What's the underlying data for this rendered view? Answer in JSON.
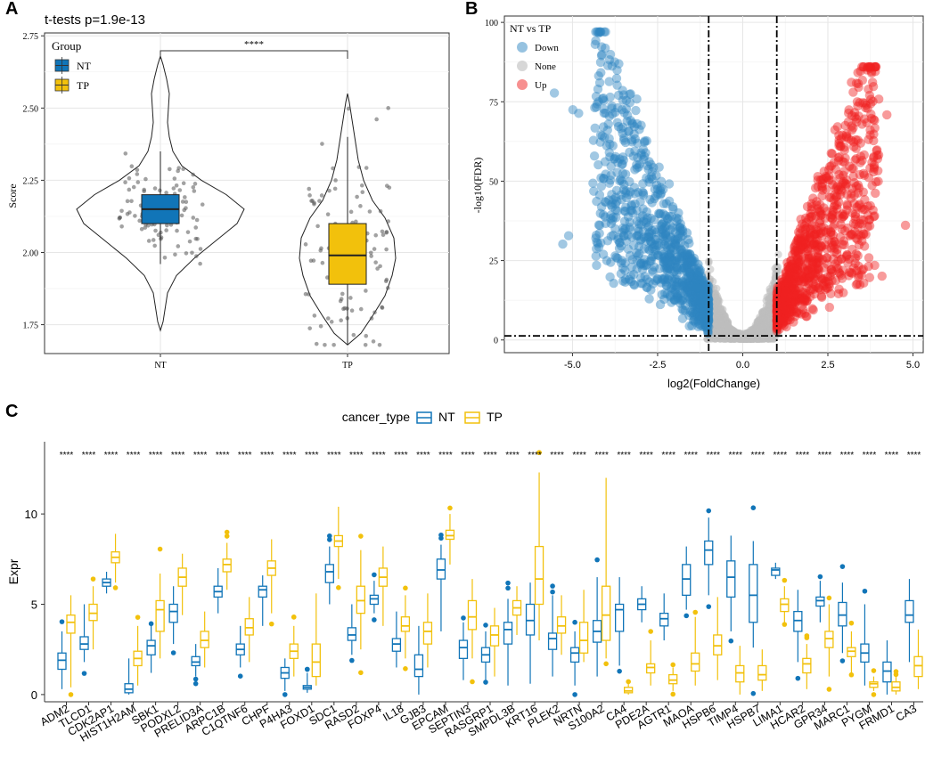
{
  "colors": {
    "nt": "#1175B8",
    "tp": "#F2C10C",
    "down": "#2E86C1",
    "none": "#BDBDBD",
    "up": "#F02222",
    "grid": "#E6E6E6",
    "axis": "#333333"
  },
  "chart_data": [
    {
      "panel_label": "A",
      "type": "violin-box",
      "title": "t-tests p=1.9e-13",
      "xlabel": "",
      "ylabel": "Score",
      "ylim": [
        1.65,
        2.76
      ],
      "yticks": [
        1.75,
        2.0,
        2.25,
        2.5,
        2.75
      ],
      "ytick_labels": [
        "1.75",
        "2.00",
        "2.25",
        "2.50",
        "2.75"
      ],
      "categories": [
        "NT",
        "TP"
      ],
      "legend_title": "Group",
      "legend": [
        "NT",
        "TP"
      ],
      "significance": "****",
      "groups": [
        {
          "name": "NT",
          "q1": 2.1,
          "median": 2.15,
          "q3": 2.2,
          "whisker_low": 1.96,
          "whisker_high": 2.35,
          "min": 1.73,
          "max": 2.68
        },
        {
          "name": "TP",
          "q1": 1.89,
          "median": 1.99,
          "q3": 2.1,
          "whisker_low": 1.68,
          "whisker_high": 2.4,
          "min": 1.68,
          "max": 2.55
        }
      ]
    },
    {
      "panel_label": "B",
      "type": "scatter",
      "title": "",
      "xlabel": "log2(FoldChange)",
      "ylabel": "-log10(FDR)",
      "xlim": [
        -7.0,
        5.3
      ],
      "ylim": [
        -4,
        102
      ],
      "xticks": [
        -5.0,
        -2.5,
        0.0,
        2.5,
        5.0
      ],
      "xtick_labels": [
        "-5.0",
        "-2.5",
        "0.0",
        "2.5",
        "5.0"
      ],
      "yticks": [
        0,
        25,
        50,
        75,
        100
      ],
      "ytick_labels": [
        "0",
        "25",
        "50",
        "75",
        "100"
      ],
      "legend_title": "NT vs TP",
      "legend": [
        "Down",
        "None",
        "Up"
      ],
      "thresholds": {
        "fc_low": -1,
        "fc_high": 1,
        "fdr": 1.3
      },
      "note": "Volcano plot; thousands of points shown as a dense cloud."
    },
    {
      "panel_label": "C",
      "type": "boxplot",
      "title": "",
      "xlabel": "",
      "ylabel": "Expr",
      "ylim": [
        -0.4,
        14.0
      ],
      "yticks": [
        0,
        5,
        10
      ],
      "ytick_labels": [
        "0",
        "5",
        "10"
      ],
      "legend_title": "cancer_type",
      "legend": [
        "NT",
        "TP"
      ],
      "significance_label": "****",
      "categories": [
        "ADM2",
        "TLCD1",
        "CDK2AP1",
        "HIST1H2AM",
        "SBK1",
        "PODXL2",
        "PRELID3A",
        "ARPC1B",
        "C1QTNF6",
        "CHPF",
        "P4HA3",
        "FOXD1",
        "SDC1",
        "RASD2",
        "FOXP4",
        "IL18",
        "GJB3",
        "EPCAM",
        "SEPTIN3",
        "RASGRP1",
        "SMPDL3B",
        "KRT16",
        "PLEK2",
        "NRTN",
        "S100A2",
        "CA4",
        "PDE2A",
        "AGTR1",
        "MAOA",
        "HSPB6",
        "TIMP4",
        "HSPB7",
        "LIMA1",
        "HCAR2",
        "GPR34",
        "MARC1",
        "PYGM",
        "FRMD1",
        "CA3"
      ],
      "series": [
        {
          "name": "NT",
          "boxes": [
            [
              0.3,
              1.4,
              1.9,
              2.3,
              3.5
            ],
            [
              1.8,
              2.5,
              2.8,
              3.2,
              5.0
            ],
            [
              5.6,
              6.0,
              6.2,
              6.4,
              6.8
            ],
            [
              0.0,
              0.1,
              0.3,
              0.6,
              2.0
            ],
            [
              1.2,
              2.2,
              2.7,
              3.0,
              3.8
            ],
            [
              2.8,
              4.0,
              4.6,
              5.0,
              6.0
            ],
            [
              1.0,
              1.6,
              1.8,
              2.1,
              2.8
            ],
            [
              4.5,
              5.4,
              5.7,
              6.0,
              7.0
            ],
            [
              1.5,
              2.2,
              2.5,
              2.8,
              3.8
            ],
            [
              3.8,
              5.4,
              5.8,
              6.0,
              6.6
            ],
            [
              0.2,
              0.9,
              1.2,
              1.5,
              2.0
            ],
            [
              0.1,
              0.3,
              0.4,
              0.5,
              1.2
            ],
            [
              5.0,
              6.2,
              6.8,
              7.2,
              8.2
            ],
            [
              2.2,
              3.0,
              3.3,
              3.7,
              5.0
            ],
            [
              4.5,
              5.0,
              5.3,
              5.5,
              6.3
            ],
            [
              1.5,
              2.4,
              2.8,
              3.1,
              4.6
            ],
            [
              0.0,
              1.0,
              1.4,
              2.2,
              3.8
            ],
            [
              3.5,
              6.4,
              6.9,
              7.5,
              8.3
            ],
            [
              0.8,
              2.0,
              2.6,
              3.0,
              4.0
            ],
            [
              0.8,
              1.8,
              2.2,
              2.6,
              3.5
            ],
            [
              0.5,
              2.8,
              3.6,
              4.0,
              5.3
            ],
            [
              0.6,
              3.3,
              4.1,
              5.0,
              6.2
            ],
            [
              1.0,
              2.5,
              3.1,
              3.4,
              5.5
            ],
            [
              0.5,
              1.8,
              2.3,
              2.6,
              3.5
            ],
            [
              1.0,
              2.9,
              3.5,
              4.1,
              6.5
            ],
            [
              1.6,
              3.5,
              4.7,
              5.0,
              6.5
            ],
            [
              4.0,
              4.7,
              5.0,
              5.3,
              6.0
            ],
            [
              3.0,
              3.8,
              4.2,
              4.5,
              5.6
            ],
            [
              4.7,
              5.5,
              6.4,
              7.2,
              8.2
            ],
            [
              5.5,
              7.2,
              8.0,
              8.5,
              9.8
            ],
            [
              3.5,
              5.4,
              6.5,
              7.4,
              8.8
            ],
            [
              2.6,
              4.0,
              5.5,
              7.2,
              8.5
            ],
            [
              6.4,
              6.6,
              6.9,
              7.0,
              7.3
            ],
            [
              1.8,
              3.5,
              4.1,
              4.6,
              5.8
            ],
            [
              4.0,
              4.9,
              5.2,
              5.4,
              6.3
            ],
            [
              2.3,
              3.8,
              4.4,
              5.1,
              6.2
            ],
            [
              0.5,
              1.8,
              2.3,
              2.8,
              5.0
            ],
            [
              0.0,
              0.7,
              1.3,
              1.8,
              3.0
            ],
            [
              1.8,
              4.0,
              4.4,
              5.2,
              6.4
            ]
          ]
        },
        {
          "name": "TP",
          "boxes": [
            [
              0.4,
              3.4,
              4.0,
              4.4,
              5.5
            ],
            [
              2.5,
              4.1,
              4.5,
              5.0,
              6.0
            ],
            [
              6.2,
              7.3,
              7.6,
              7.9,
              8.9
            ],
            [
              0.5,
              1.6,
              2.0,
              2.4,
              3.8
            ],
            [
              2.0,
              3.5,
              4.7,
              5.2,
              6.7
            ],
            [
              4.4,
              6.0,
              6.5,
              7.0,
              7.8
            ],
            [
              1.5,
              2.6,
              3.0,
              3.5,
              4.6
            ],
            [
              5.8,
              6.8,
              7.2,
              7.5,
              8.4
            ],
            [
              1.8,
              3.3,
              3.7,
              4.2,
              5.4
            ],
            [
              4.5,
              6.6,
              7.0,
              7.4,
              8.6
            ],
            [
              1.0,
              2.0,
              2.4,
              2.8,
              3.8
            ],
            [
              0.5,
              1.0,
              1.8,
              2.8,
              5.6
            ],
            [
              6.4,
              8.2,
              8.5,
              8.8,
              10.4
            ],
            [
              2.5,
              4.5,
              5.2,
              6.0,
              8.0
            ],
            [
              3.8,
              6.0,
              6.5,
              7.0,
              8.2
            ],
            [
              2.0,
              3.5,
              3.8,
              4.3,
              5.5
            ],
            [
              1.5,
              2.8,
              3.5,
              4.0,
              5.6
            ],
            [
              7.2,
              8.6,
              8.8,
              9.1,
              10.0
            ],
            [
              2.0,
              3.6,
              4.3,
              5.2,
              6.4
            ],
            [
              1.0,
              2.7,
              3.3,
              3.8,
              4.8
            ],
            [
              3.3,
              4.4,
              4.8,
              5.2,
              6.0
            ],
            [
              3.0,
              5.0,
              6.4,
              8.2,
              12.3
            ],
            [
              2.2,
              3.4,
              3.8,
              4.3,
              5.5
            ],
            [
              1.8,
              2.3,
              3.0,
              4.0,
              5.8
            ],
            [
              2.0,
              3.0,
              4.4,
              6.0,
              12.0
            ],
            [
              0.0,
              0.1,
              0.2,
              0.4,
              0.6
            ],
            [
              0.5,
              1.2,
              1.5,
              1.7,
              3.0
            ],
            [
              0.2,
              0.6,
              0.8,
              1.1,
              1.5
            ],
            [
              0.5,
              1.3,
              1.7,
              2.3,
              4.3
            ],
            [
              0.8,
              2.2,
              2.7,
              3.3,
              5.4
            ],
            [
              0.0,
              0.7,
              1.2,
              1.6,
              2.7
            ],
            [
              0.2,
              0.8,
              1.1,
              1.6,
              2.5
            ],
            [
              4.0,
              4.6,
              5.0,
              5.3,
              6.0
            ],
            [
              0.3,
              1.2,
              1.7,
              2.0,
              2.8
            ],
            [
              1.0,
              2.6,
              3.1,
              3.5,
              5.0
            ],
            [
              1.2,
              2.1,
              2.4,
              2.6,
              3.5
            ],
            [
              0.2,
              0.4,
              0.6,
              0.7,
              1.0
            ],
            [
              0.0,
              0.2,
              0.4,
              0.7,
              1.0
            ],
            [
              0.3,
              1.0,
              1.6,
              2.1,
              3.6
            ]
          ]
        }
      ]
    }
  ]
}
